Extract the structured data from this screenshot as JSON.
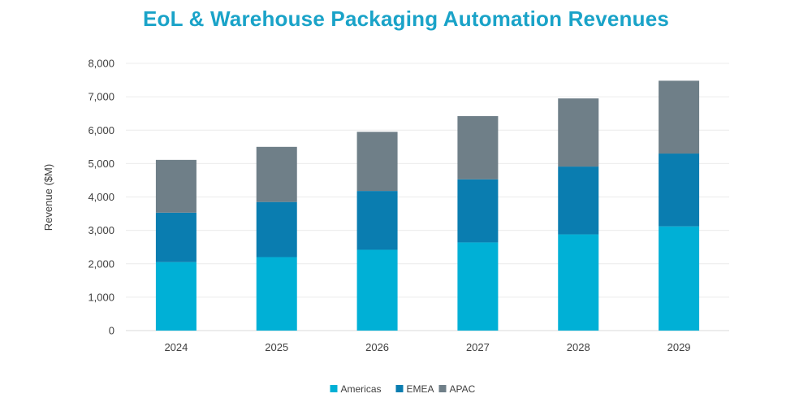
{
  "chart_data": {
    "type": "bar",
    "stacked": true,
    "title": "EoL & Warehouse Packaging Automation Revenues",
    "xlabel": "",
    "ylabel": "Revenue ($M)",
    "ylim": [
      0,
      8000
    ],
    "yticks": [
      0,
      1000,
      2000,
      3000,
      4000,
      5000,
      6000,
      7000,
      8000
    ],
    "ytick_labels": [
      "0",
      "1,000",
      "2,000",
      "3,000",
      "4,000",
      "5,000",
      "6,000",
      "7,000",
      "8,000"
    ],
    "grid": true,
    "legend_position": "bottom",
    "categories": [
      "2024",
      "2025",
      "2026",
      "2027",
      "2028",
      "2029"
    ],
    "series": [
      {
        "name": "Americas",
        "color": "#00b0d6",
        "values": [
          2050,
          2200,
          2420,
          2640,
          2880,
          3120
        ]
      },
      {
        "name": "EMEA",
        "color": "#0a7db0",
        "values": [
          1480,
          1650,
          1760,
          1890,
          2030,
          2180
        ]
      },
      {
        "name": "APAC",
        "color": "#6f7f88",
        "values": [
          1580,
          1650,
          1770,
          1890,
          2040,
          2180
        ]
      }
    ]
  }
}
